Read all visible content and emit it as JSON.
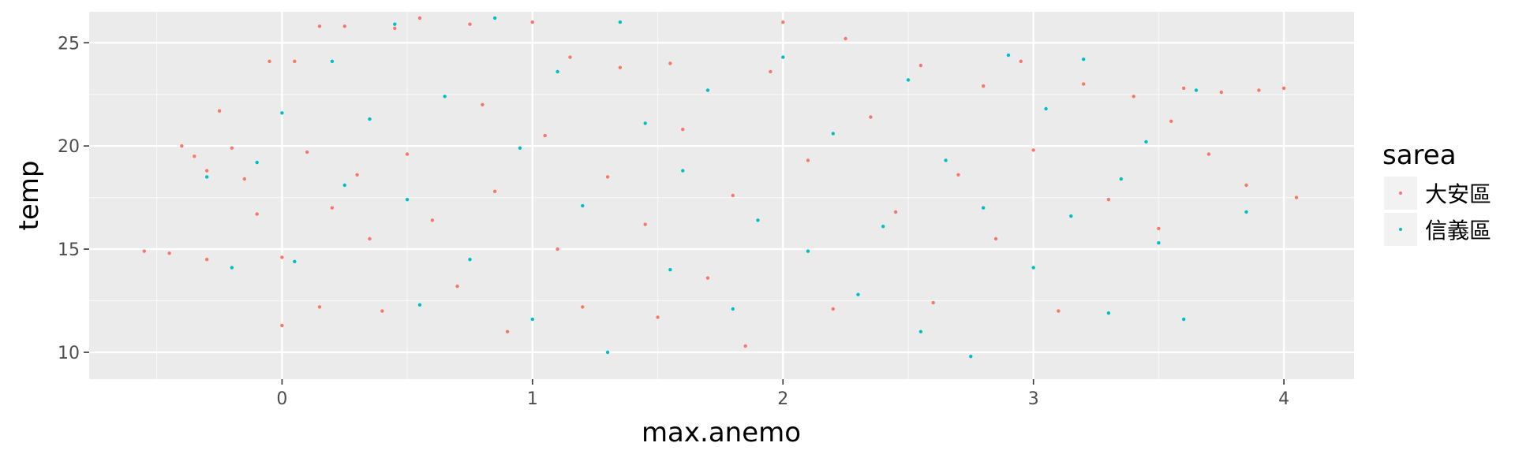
{
  "chart_data": {
    "type": "scatter",
    "title": "",
    "xlabel": "max.anemo",
    "ylabel": "temp",
    "xlim": [
      -0.77,
      4.28
    ],
    "ylim": [
      8.7,
      26.5
    ],
    "x_ticks": [
      0,
      1,
      2,
      3,
      4
    ],
    "y_ticks": [
      10,
      15,
      20,
      25
    ],
    "x_tick_labels": [
      "0",
      "1",
      "2",
      "3",
      "4"
    ],
    "y_tick_labels": [
      "10",
      "15",
      "20",
      "25"
    ],
    "grid": true,
    "legend": {
      "title": "sarea",
      "position": "right",
      "entries": [
        "大安區",
        "信義區"
      ]
    },
    "series": [
      {
        "name": "大安區",
        "color": "#F8766D",
        "points": [
          [
            -0.55,
            14.9
          ],
          [
            -0.45,
            14.8
          ],
          [
            -0.4,
            20.0
          ],
          [
            -0.35,
            19.5
          ],
          [
            -0.3,
            18.8
          ],
          [
            -0.3,
            14.5
          ],
          [
            -0.25,
            21.7
          ],
          [
            -0.2,
            19.9
          ],
          [
            -0.15,
            18.4
          ],
          [
            -0.1,
            16.7
          ],
          [
            -0.05,
            24.1
          ],
          [
            0.0,
            14.6
          ],
          [
            0.0,
            11.3
          ],
          [
            0.05,
            24.1
          ],
          [
            0.1,
            19.7
          ],
          [
            0.15,
            25.8
          ],
          [
            0.15,
            12.2
          ],
          [
            0.2,
            17.0
          ],
          [
            0.25,
            25.8
          ],
          [
            0.3,
            18.6
          ],
          [
            0.35,
            15.5
          ],
          [
            0.4,
            12.0
          ],
          [
            0.45,
            25.7
          ],
          [
            0.5,
            19.6
          ],
          [
            0.55,
            26.2
          ],
          [
            0.6,
            16.4
          ],
          [
            0.7,
            13.2
          ],
          [
            0.75,
            25.9
          ],
          [
            0.8,
            22.0
          ],
          [
            0.85,
            17.8
          ],
          [
            0.9,
            11.0
          ],
          [
            1.0,
            26.0
          ],
          [
            1.05,
            20.5
          ],
          [
            1.1,
            15.0
          ],
          [
            1.15,
            24.3
          ],
          [
            1.2,
            12.2
          ],
          [
            1.3,
            18.5
          ],
          [
            1.35,
            23.8
          ],
          [
            1.45,
            16.2
          ],
          [
            1.5,
            11.7
          ],
          [
            1.55,
            24.0
          ],
          [
            1.6,
            20.8
          ],
          [
            1.7,
            13.6
          ],
          [
            1.8,
            17.6
          ],
          [
            1.85,
            10.3
          ],
          [
            1.95,
            23.6
          ],
          [
            2.0,
            26.0
          ],
          [
            2.1,
            19.3
          ],
          [
            2.2,
            12.1
          ],
          [
            2.25,
            25.2
          ],
          [
            2.35,
            21.4
          ],
          [
            2.45,
            16.8
          ],
          [
            2.55,
            23.9
          ],
          [
            2.6,
            12.4
          ],
          [
            2.7,
            18.6
          ],
          [
            2.8,
            22.9
          ],
          [
            2.85,
            15.5
          ],
          [
            2.95,
            24.1
          ],
          [
            3.0,
            19.8
          ],
          [
            3.1,
            12.0
          ],
          [
            3.2,
            23.0
          ],
          [
            3.3,
            17.4
          ],
          [
            3.4,
            22.4
          ],
          [
            3.5,
            16.0
          ],
          [
            3.55,
            21.2
          ],
          [
            3.6,
            22.8
          ],
          [
            3.7,
            19.6
          ],
          [
            3.75,
            22.6
          ],
          [
            3.85,
            18.1
          ],
          [
            3.9,
            22.7
          ],
          [
            4.0,
            22.8
          ],
          [
            4.05,
            17.5
          ]
        ]
      },
      {
        "name": "信義區",
        "color": "#00BFC4",
        "points": [
          [
            -0.3,
            18.5
          ],
          [
            -0.2,
            14.1
          ],
          [
            -0.1,
            19.2
          ],
          [
            0.0,
            21.6
          ],
          [
            0.05,
            14.4
          ],
          [
            0.2,
            24.1
          ],
          [
            0.25,
            18.1
          ],
          [
            0.35,
            21.3
          ],
          [
            0.45,
            25.9
          ],
          [
            0.5,
            17.4
          ],
          [
            0.55,
            12.3
          ],
          [
            0.65,
            22.4
          ],
          [
            0.75,
            14.5
          ],
          [
            0.85,
            26.2
          ],
          [
            0.95,
            19.9
          ],
          [
            1.0,
            11.6
          ],
          [
            1.1,
            23.6
          ],
          [
            1.2,
            17.1
          ],
          [
            1.3,
            10.0
          ],
          [
            1.35,
            26.0
          ],
          [
            1.45,
            21.1
          ],
          [
            1.55,
            14.0
          ],
          [
            1.6,
            18.8
          ],
          [
            1.7,
            22.7
          ],
          [
            1.8,
            12.1
          ],
          [
            1.9,
            16.4
          ],
          [
            2.0,
            24.3
          ],
          [
            2.1,
            14.9
          ],
          [
            2.2,
            20.6
          ],
          [
            2.3,
            12.8
          ],
          [
            2.4,
            16.1
          ],
          [
            2.5,
            23.2
          ],
          [
            2.55,
            11.0
          ],
          [
            2.65,
            19.3
          ],
          [
            2.75,
            9.8
          ],
          [
            2.8,
            17.0
          ],
          [
            2.9,
            24.4
          ],
          [
            3.0,
            14.1
          ],
          [
            3.05,
            21.8
          ],
          [
            3.15,
            16.6
          ],
          [
            3.2,
            24.2
          ],
          [
            3.3,
            11.9
          ],
          [
            3.35,
            18.4
          ],
          [
            3.45,
            20.2
          ],
          [
            3.5,
            15.3
          ],
          [
            3.6,
            11.6
          ],
          [
            3.65,
            22.7
          ],
          [
            3.85,
            16.8
          ]
        ]
      }
    ]
  }
}
